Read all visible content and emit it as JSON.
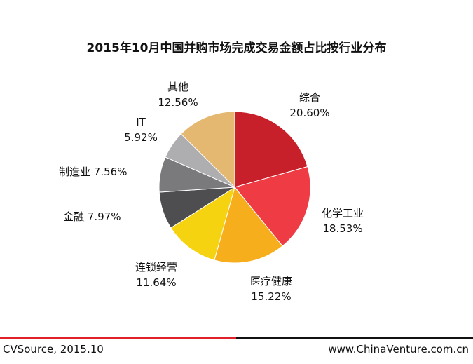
{
  "chart_data": {
    "type": "pie",
    "title": "2015年10月中国并购市场完成交易金额占比按行业分布",
    "slices": [
      {
        "label": "综合",
        "value": 20.6,
        "value_text": "20.60%",
        "color": "#c8202a"
      },
      {
        "label": "化学工业",
        "value": 18.53,
        "value_text": "18.53%",
        "color": "#ee3b44"
      },
      {
        "label": "医疗健康",
        "value": 15.22,
        "value_text": "15.22%",
        "color": "#f7ae1c"
      },
      {
        "label": "连锁经营",
        "value": 11.64,
        "value_text": "11.64%",
        "color": "#f5d311"
      },
      {
        "label": "金融",
        "value": 7.97,
        "value_text": "7.97%",
        "color": "#4e4e50"
      },
      {
        "label": "制造业",
        "value": 7.56,
        "value_text": "7.56%",
        "color": "#7a7a7c"
      },
      {
        "label": "IT",
        "value": 5.92,
        "value_text": "5.92%",
        "color": "#aeaeb0"
      },
      {
        "label": "其他",
        "value": 12.56,
        "value_text": "12.56%",
        "color": "#e5b872"
      }
    ]
  },
  "footer": {
    "source": "CVSource, 2015.10",
    "site": "www.ChinaVenture.com.cn"
  }
}
